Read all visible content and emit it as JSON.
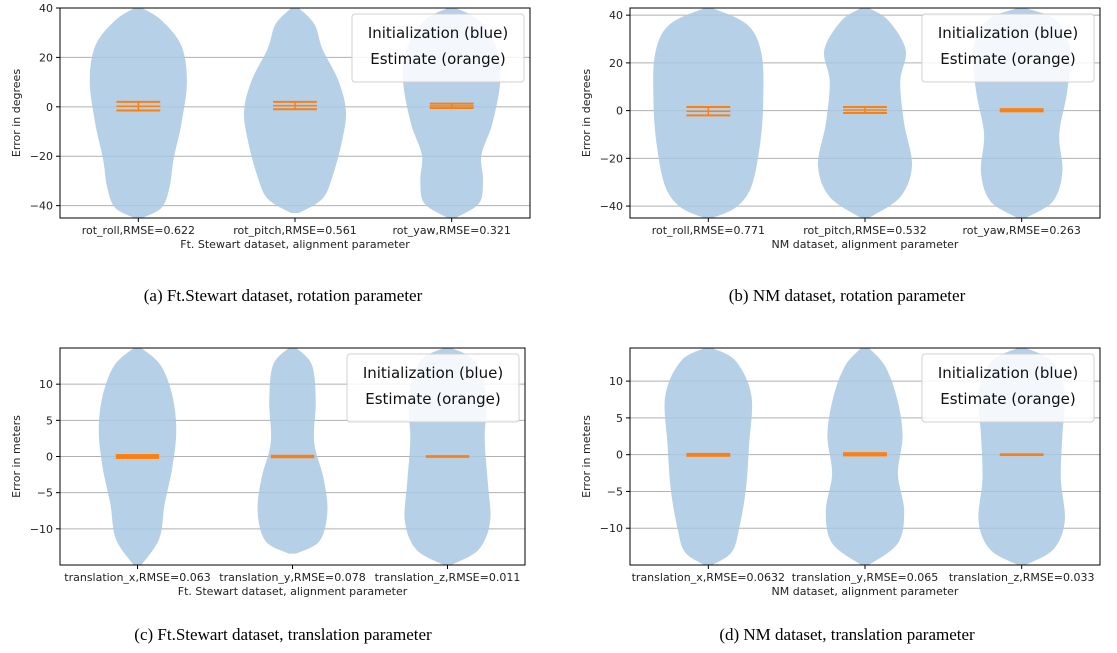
{
  "figure": {
    "colors": {
      "violin": "#a9c9e3",
      "estimate": "#ff7f0e",
      "grid": "#b0b0b0"
    }
  },
  "chart_data": [
    {
      "type": "violin",
      "caption": "(a) Ft.Stewart dataset, rotation parameter",
      "xlabel": "Ft. Stewart dataset, alignment parameter",
      "ylabel": "Error in degrees",
      "ylim": [
        -45,
        40
      ],
      "yticks": [
        -40,
        -20,
        0,
        20,
        40
      ],
      "grid": "horizontal",
      "legend": {
        "placement": "top-right",
        "entries": [
          "Initialization (blue)",
          "Estimate (orange)"
        ]
      },
      "categories": [
        "rot_roll,RMSE=0.622",
        "rot_pitch,RMSE=0.561",
        "rot_yaw,RMSE=0.321"
      ],
      "initialization_range": [
        [
          -45,
          40
        ],
        [
          -43,
          40
        ],
        [
          -45,
          40
        ]
      ],
      "estimate_range": [
        [
          -1.5,
          2
        ],
        [
          -1,
          2
        ],
        [
          -0.5,
          1.3
        ]
      ]
    },
    {
      "type": "violin",
      "caption": "(b) NM dataset, rotation parameter",
      "xlabel": "NM dataset, alignment parameter",
      "ylabel": "Error in degrees",
      "ylim": [
        -45,
        43
      ],
      "yticks": [
        -40,
        -20,
        0,
        20,
        40
      ],
      "grid": "horizontal",
      "legend": {
        "placement": "top-right",
        "entries": [
          "Initialization (blue)",
          "Estimate (orange)"
        ]
      },
      "categories": [
        "rot_roll,RMSE=0.771",
        "rot_pitch,RMSE=0.532",
        "rot_yaw,RMSE=0.263"
      ],
      "initialization_range": [
        [
          -45,
          43
        ],
        [
          -45,
          43
        ],
        [
          -45,
          43
        ]
      ],
      "estimate_range": [
        [
          -2,
          1.5
        ],
        [
          -1,
          1.5
        ],
        [
          -0.3,
          0.6
        ]
      ]
    },
    {
      "type": "violin",
      "caption": "(c) Ft.Stewart dataset, translation parameter",
      "xlabel": "Ft. Stewart dataset, alignment parameter",
      "ylabel": "Error in meters",
      "ylim": [
        -15,
        15
      ],
      "yticks": [
        -10,
        -5,
        0,
        5,
        10
      ],
      "grid": "horizontal",
      "legend": {
        "placement": "top-right",
        "entries": [
          "Initialization (blue)",
          "Estimate (orange)"
        ]
      },
      "categories": [
        "translation_x,RMSE=0.063",
        "translation_y,RMSE=0.078",
        "translation_z,RMSE=0.011"
      ],
      "initialization_range": [
        [
          -15,
          15
        ],
        [
          -14,
          15
        ],
        [
          -15,
          15
        ]
      ],
      "estimate_range": [
        [
          -0.2,
          0.2
        ],
        [
          -0.1,
          0.1
        ],
        [
          -0.05,
          0.05
        ]
      ]
    },
    {
      "type": "violin",
      "caption": "(d) NM dataset, translation parameter",
      "xlabel": "NM dataset, alignment parameter",
      "ylabel": "Error in meters",
      "ylim": [
        -15,
        14.5
      ],
      "yticks": [
        -10,
        -5,
        0,
        5,
        10
      ],
      "grid": "horizontal",
      "legend": {
        "placement": "top-right",
        "entries": [
          "Initialization (blue)",
          "Estimate (orange)"
        ]
      },
      "categories": [
        "translation_x,RMSE=0.0632",
        "translation_y,RMSE=0.065",
        "translation_z,RMSE=0.033"
      ],
      "initialization_range": [
        [
          -15,
          14.5
        ],
        [
          -15,
          14.5
        ],
        [
          -15,
          14.5
        ]
      ],
      "estimate_range": [
        [
          -0.15,
          0.1
        ],
        [
          -0.1,
          0.2
        ],
        [
          -0.05,
          0.05
        ]
      ]
    }
  ]
}
